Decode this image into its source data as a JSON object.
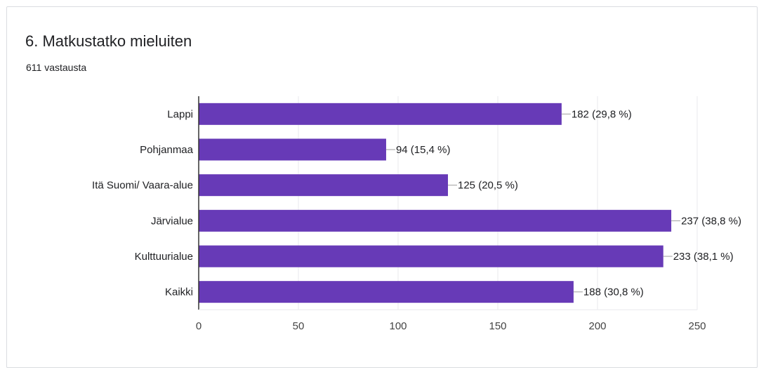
{
  "question": {
    "title": "6. Matkustatko mieluiten",
    "responses": "611 vastausta"
  },
  "colors": {
    "bar": "#673ab7",
    "grid": "#e8eaed",
    "axis": "#333333",
    "text": "#202124",
    "leader": "#9e9e9e"
  },
  "chart_data": {
    "type": "bar",
    "orientation": "horizontal",
    "categories": [
      "Lappi",
      "Pohjanmaa",
      "Itä Suomi/ Vaara-alue",
      "Järvialue",
      "Kulttuurialue",
      "Kaikki"
    ],
    "values": [
      182,
      94,
      125,
      237,
      233,
      188
    ],
    "data_labels": [
      "182 (29,8 %)",
      "94 (15,4 %)",
      "125 (20,5 %)",
      "237 (38,8 %)",
      "233 (38,1 %)",
      "188 (30,8 %)"
    ],
    "xlim": [
      0,
      250
    ],
    "xticks": [
      0,
      50,
      100,
      150,
      200,
      250
    ],
    "grid": true,
    "title": "",
    "xlabel": "",
    "ylabel": ""
  }
}
